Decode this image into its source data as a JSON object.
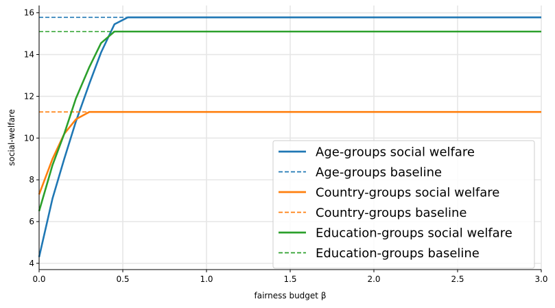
{
  "chart_data": {
    "type": "line",
    "title": "",
    "xlabel": "fairness budget β",
    "ylabel": "social-welfare",
    "xlim": [
      0,
      3.0
    ],
    "ylim": [
      3.7,
      16.35
    ],
    "xticks": [
      0,
      0.5,
      1.0,
      1.5,
      2.0,
      2.5,
      3.0
    ],
    "xtick_labels": [
      "0.0",
      "0.5",
      "1.0",
      "1.5",
      "2.0",
      "2.5",
      "3.0"
    ],
    "yticks": [
      4,
      6,
      8,
      10,
      12,
      14,
      16
    ],
    "ytick_labels": [
      "4",
      "6",
      "8",
      "10",
      "12",
      "14",
      "16"
    ],
    "grid": true,
    "legend_position": "bottom-right",
    "series": [
      {
        "name": "Age-groups social welfare",
        "style": "solid",
        "color": "#1f77b4",
        "x": [
          0,
          0.08,
          0.15,
          0.22,
          0.3,
          0.37,
          0.45,
          0.53,
          3.0
        ],
        "y": [
          4.3,
          7.1,
          9.0,
          10.8,
          12.6,
          14.1,
          15.45,
          15.78,
          15.78
        ]
      },
      {
        "name": "Age-groups baseline",
        "style": "dashed",
        "color": "#1f77b4",
        "x": [
          0,
          0.53
        ],
        "y": [
          15.78,
          15.78
        ]
      },
      {
        "name": "Country-groups social welfare",
        "style": "solid",
        "color": "#ff7f0e",
        "x": [
          0,
          0.08,
          0.15,
          0.22,
          0.3,
          3.0
        ],
        "y": [
          7.3,
          9.0,
          10.2,
          10.9,
          11.25,
          11.25
        ]
      },
      {
        "name": "Country-groups baseline",
        "style": "dashed",
        "color": "#ff7f0e",
        "x": [
          0,
          0.3
        ],
        "y": [
          11.25,
          11.25
        ]
      },
      {
        "name": "Education-groups social welfare",
        "style": "solid",
        "color": "#2ca02c",
        "x": [
          0,
          0.08,
          0.15,
          0.22,
          0.3,
          0.37,
          0.45,
          3.0
        ],
        "y": [
          6.5,
          8.7,
          10.2,
          11.9,
          13.4,
          14.55,
          15.1,
          15.1
        ]
      },
      {
        "name": "Education-groups baseline",
        "style": "dashed",
        "color": "#2ca02c",
        "x": [
          0,
          0.45
        ],
        "y": [
          15.1,
          15.1
        ]
      }
    ]
  }
}
